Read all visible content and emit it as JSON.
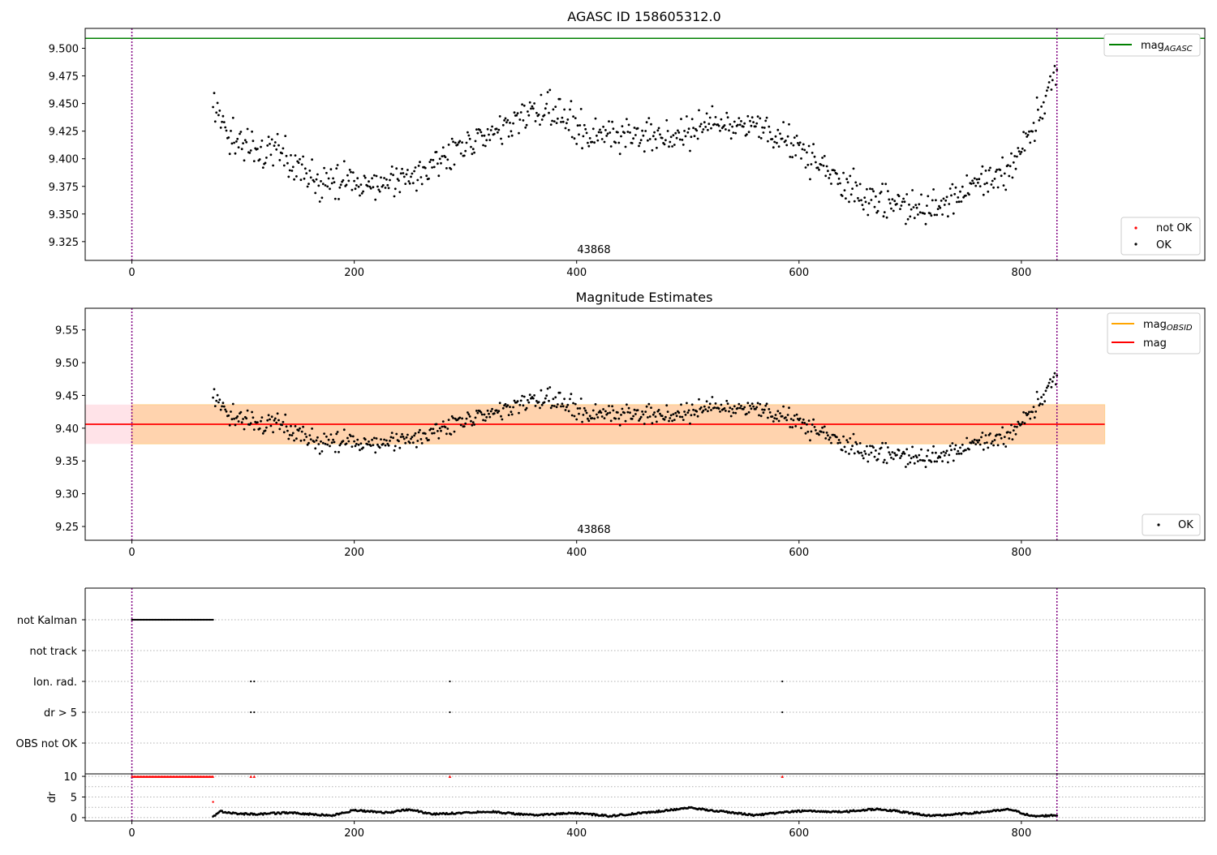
{
  "chart_data": [
    {
      "type": "scatter",
      "title": "AGASC ID 158605312.0",
      "xlim": [
        -42,
        965
      ],
      "ylim": [
        9.308,
        9.518
      ],
      "xticks": [
        0,
        200,
        400,
        600,
        800
      ],
      "yticks": [
        9.325,
        9.35,
        9.375,
        9.4,
        9.425,
        9.45,
        9.475,
        9.5
      ],
      "ytick_labels": [
        "9.325",
        "9.350",
        "9.375",
        "9.400",
        "9.425",
        "9.450",
        "9.475",
        "9.500"
      ],
      "hlines": [
        {
          "name": "mag_AGASC",
          "y": 9.509,
          "color": "#008000"
        }
      ],
      "vlines": [
        {
          "x": 0,
          "color": "#800080",
          "style": "dotted"
        },
        {
          "x": 832,
          "color": "#800080",
          "style": "dotted"
        }
      ],
      "annotations": [
        {
          "text": "43868",
          "x": 416
        }
      ],
      "legend_top": {
        "placement": "upper right",
        "entries": [
          {
            "main": "mag",
            "sub": "AGASC",
            "kind": "line",
            "color": "#008000"
          }
        ]
      },
      "legend_bottom": {
        "placement": "lower right",
        "entries": [
          {
            "main": "not OK",
            "kind": "dot",
            "color": "#ff0000"
          },
          {
            "main": "OK",
            "kind": "dot",
            "color": "#000000"
          }
        ]
      },
      "series": [
        {
          "name": "OK",
          "color": "#000000",
          "x_range": [
            73,
            832
          ],
          "n_points": 760,
          "shape": [
            [
              73,
              9.453
            ],
            [
              85,
              9.425
            ],
            [
              100,
              9.41
            ],
            [
              130,
              9.405
            ],
            [
              165,
              9.378
            ],
            [
              200,
              9.38
            ],
            [
              220,
              9.372
            ],
            [
              265,
              9.39
            ],
            [
              300,
              9.412
            ],
            [
              340,
              9.43
            ],
            [
              375,
              9.445
            ],
            [
              410,
              9.425
            ],
            [
              440,
              9.423
            ],
            [
              480,
              9.42
            ],
            [
              520,
              9.432
            ],
            [
              570,
              9.425
            ],
            [
              600,
              9.412
            ],
            [
              640,
              9.375
            ],
            [
              670,
              9.362
            ],
            [
              715,
              9.353
            ],
            [
              760,
              9.375
            ],
            [
              790,
              9.39
            ],
            [
              815,
              9.44
            ],
            [
              830,
              9.47
            ]
          ],
          "noise": 0.012
        },
        {
          "name": "not OK",
          "color": "#ff0000",
          "values": []
        }
      ]
    },
    {
      "type": "scatter",
      "title": "Magnitude Estimates",
      "xlim": [
        -42,
        965
      ],
      "ylim": [
        9.229,
        9.583
      ],
      "xticks": [
        0,
        200,
        400,
        600,
        800
      ],
      "yticks": [
        9.25,
        9.3,
        9.35,
        9.4,
        9.45,
        9.5,
        9.55
      ],
      "ytick_labels": [
        "9.25",
        "9.30",
        "9.35",
        "9.40",
        "9.45",
        "9.50",
        "9.55"
      ],
      "hlines": [
        {
          "name": "mag",
          "y": 9.406,
          "color": "#ff0000",
          "x_range": [
            -42,
            875
          ]
        }
      ],
      "bands": [
        {
          "y_range": [
            9.376,
            9.436
          ],
          "x_range": [
            -42,
            875
          ],
          "color": "#ffc0cb",
          "opacity": 0.45
        },
        {
          "y_range": [
            9.376,
            9.436
          ],
          "x_range": [
            0,
            875
          ],
          "color": "#ffa500",
          "opacity": 0.25
        }
      ],
      "vlines": [
        {
          "x": 0,
          "color": "#800080",
          "style": "dotted"
        },
        {
          "x": 832,
          "color": "#800080",
          "style": "dotted"
        }
      ],
      "annotations": [
        {
          "text": "43868",
          "x": 416
        }
      ],
      "legend_top": {
        "placement": "upper right",
        "entries": [
          {
            "main": "mag",
            "sub": "OBSID",
            "kind": "line",
            "color": "#ffa500"
          },
          {
            "main": "mag",
            "kind": "line",
            "color": "#ff0000"
          }
        ]
      },
      "legend_bottom": {
        "placement": "lower right",
        "entries": [
          {
            "main": "OK",
            "kind": "dot",
            "color": "#000000"
          }
        ]
      },
      "series": [
        {
          "name": "OK",
          "color": "#000000",
          "same_as_top": true
        }
      ]
    },
    {
      "type": "scatter",
      "title": "",
      "xlim": [
        -42,
        965
      ],
      "xticks": [
        0,
        200,
        400,
        600,
        800
      ],
      "flag_rows": [
        "not Kalman",
        "not track",
        "Ion. rad.",
        "dr > 5",
        "OBS not OK"
      ],
      "flags": {
        "not Kalman": {
          "x_range": [
            0,
            73
          ]
        },
        "not track": {
          "x_values": []
        },
        "Ion. rad.": {
          "x_values": [
            107,
            110,
            286,
            585
          ]
        },
        "dr > 5": {
          "x_values": [
            107,
            110,
            286,
            585
          ]
        },
        "OBS not OK": {
          "x_values": []
        }
      },
      "dr": {
        "ylabel": "dr",
        "ylim": [
          -0.8,
          10.6
        ],
        "yticks": [
          0,
          5,
          10
        ],
        "clipped_value": 10,
        "clipped_x": {
          "range": [
            0,
            73
          ],
          "extra": [
            107,
            110,
            286,
            585
          ]
        },
        "outlier": {
          "x": 73,
          "y": 3.8
        },
        "shape": [
          [
            73,
            0.2
          ],
          [
            80,
            1.5
          ],
          [
            95,
            1.0
          ],
          [
            110,
            0.8
          ],
          [
            140,
            1.2
          ],
          [
            180,
            0.5
          ],
          [
            200,
            1.8
          ],
          [
            230,
            1.2
          ],
          [
            250,
            2.0
          ],
          [
            270,
            0.8
          ],
          [
            320,
            1.5
          ],
          [
            360,
            0.6
          ],
          [
            400,
            1.1
          ],
          [
            430,
            0.4
          ],
          [
            470,
            1.4
          ],
          [
            500,
            2.4
          ],
          [
            520,
            1.8
          ],
          [
            560,
            0.6
          ],
          [
            600,
            1.6
          ],
          [
            640,
            1.4
          ],
          [
            670,
            2.1
          ],
          [
            690,
            1.5
          ],
          [
            720,
            0.4
          ],
          [
            760,
            1.2
          ],
          [
            790,
            2.0
          ],
          [
            810,
            0.3
          ],
          [
            832,
            0.6
          ]
        ]
      },
      "vlines": [
        {
          "x": 0,
          "color": "#800080",
          "style": "dotted"
        },
        {
          "x": 832,
          "color": "#800080",
          "style": "dotted"
        }
      ]
    }
  ]
}
